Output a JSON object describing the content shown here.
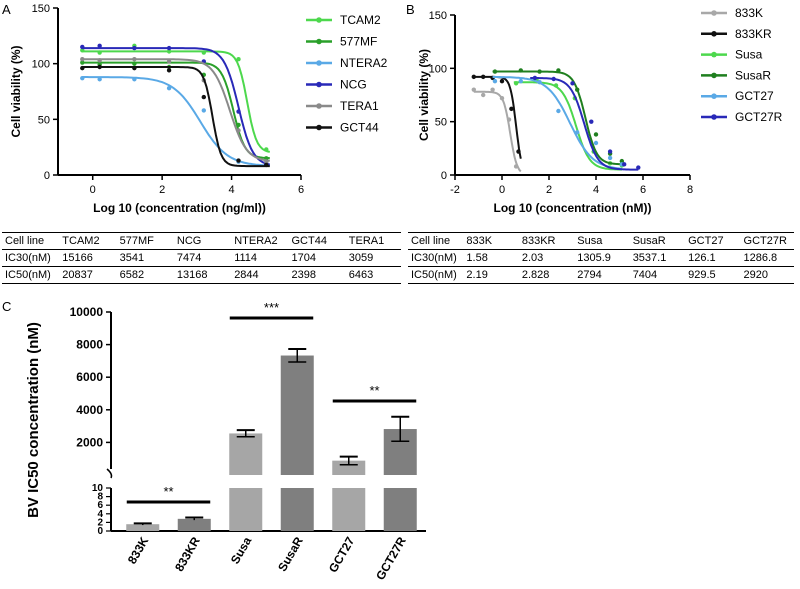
{
  "panels": {
    "a": "A",
    "b": "B",
    "c": "C"
  },
  "chart_data": [
    {
      "type": "line",
      "panel": "A",
      "title": "",
      "xlabel": "Log 10 (concentration (ng/ml))",
      "ylabel": "Cell viability (%)",
      "xlim": [
        -1,
        6
      ],
      "ylim": [
        0,
        150
      ],
      "xticks": [
        "0",
        "2",
        "4",
        "6"
      ],
      "yticks": [
        "0",
        "50",
        "100",
        "150"
      ],
      "series": [
        {
          "name": "TCAM2",
          "color": "#4dd84d",
          "top": 111,
          "bottom": 20,
          "logec50": 4.45,
          "hill": 3.2,
          "points": [
            [
              -0.3,
              112
            ],
            [
              0.2,
              110
            ],
            [
              1.2,
              116
            ],
            [
              2.2,
              111
            ],
            [
              3.2,
              110
            ],
            [
              4.2,
              104
            ],
            [
              5.0,
              23
            ]
          ]
        },
        {
          "name": "577MF",
          "color": "#2aa02a",
          "top": 101,
          "bottom": 15,
          "logec50": 4.05,
          "hill": 2.6,
          "points": [
            [
              -0.3,
              101
            ],
            [
              0.2,
              99
            ],
            [
              1.2,
              100
            ],
            [
              2.2,
              97
            ],
            [
              3.2,
              90
            ],
            [
              4.2,
              45
            ],
            [
              5.0,
              15
            ]
          ]
        },
        {
          "name": "NTERA2",
          "color": "#5aa9e6",
          "top": 88,
          "bottom": 8,
          "logec50": 3.1,
          "hill": 1.1,
          "points": [
            [
              -0.3,
              87
            ],
            [
              0.2,
              86
            ],
            [
              1.2,
              86
            ],
            [
              2.2,
              78
            ],
            [
              3.2,
              58
            ],
            [
              4.2,
              12
            ],
            [
              5.0,
              10
            ]
          ]
        },
        {
          "name": "NCG",
          "color": "#2929b8",
          "top": 114,
          "bottom": 8,
          "logec50": 4.2,
          "hill": 2.1,
          "points": [
            [
              -0.3,
              115
            ],
            [
              0.2,
              116
            ],
            [
              1.2,
              114
            ],
            [
              2.2,
              114
            ],
            [
              3.2,
              102
            ],
            [
              4.2,
              57
            ],
            [
              5.0,
              10
            ]
          ]
        },
        {
          "name": "TERA1",
          "color": "#8a8a8a",
          "top": 104,
          "bottom": 12,
          "logec50": 3.95,
          "hill": 1.8,
          "points": [
            [
              -0.3,
              104
            ],
            [
              0.2,
              103
            ],
            [
              1.2,
              104
            ],
            [
              2.2,
              102
            ],
            [
              3.2,
              85
            ],
            [
              4.2,
              40
            ],
            [
              5.0,
              12
            ]
          ]
        },
        {
          "name": "GCT44",
          "color": "#111111",
          "top": 97,
          "bottom": 8,
          "logec50": 3.45,
          "hill": 3.5,
          "points": [
            [
              -0.3,
              96
            ],
            [
              0.2,
              97
            ],
            [
              1.2,
              96
            ],
            [
              2.2,
              94
            ],
            [
              3.2,
              70
            ],
            [
              4.2,
              13
            ],
            [
              5.0,
              9
            ]
          ]
        }
      ]
    },
    {
      "type": "line",
      "panel": "B",
      "title": "",
      "xlabel": "Log 10 (concentration (nM))",
      "ylabel": "Cell viability (%)",
      "xlim": [
        -2,
        8
      ],
      "ylim": [
        0,
        150
      ],
      "xticks": [
        "-2",
        "0",
        "2",
        "4",
        "6",
        "8"
      ],
      "yticks": [
        "0",
        "50",
        "100",
        "150"
      ],
      "series": [
        {
          "name": "833K",
          "color": "#a8a8a8",
          "top": 78,
          "bottom": 0,
          "logec50": 0.35,
          "hill": 3.0,
          "xmin": -1.2,
          "xmax": 0.8,
          "points": [
            [
              -1.2,
              80
            ],
            [
              -0.8,
              75
            ],
            [
              -0.4,
              80
            ],
            [
              0.0,
              72
            ],
            [
              0.3,
              52
            ],
            [
              0.6,
              8
            ]
          ]
        },
        {
          "name": "833KR",
          "color": "#111111",
          "top": 92,
          "bottom": 0,
          "logec50": 0.6,
          "hill": 3.5,
          "xmin": -1.2,
          "xmax": 0.8,
          "points": [
            [
              -1.2,
              92
            ],
            [
              -0.8,
              92
            ],
            [
              -0.4,
              91
            ],
            [
              0.0,
              88
            ],
            [
              0.4,
              62
            ],
            [
              0.7,
              22
            ]
          ]
        },
        {
          "name": "Susa",
          "color": "#4dd84d",
          "top": 87,
          "bottom": 5,
          "logec50": 3.15,
          "hill": 1.5,
          "xmin": 0.5,
          "xmax": 5.1,
          "points": [
            [
              0.6,
              86
            ],
            [
              1.5,
              88
            ],
            [
              2.3,
              84
            ],
            [
              3.1,
              72
            ],
            [
              3.9,
              22
            ],
            [
              4.6,
              11
            ],
            [
              5.1,
              9
            ]
          ]
        },
        {
          "name": "SusaR",
          "color": "#1f7f1f",
          "top": 97,
          "bottom": 10,
          "logec50": 3.55,
          "hill": 1.8,
          "xmin": -0.4,
          "xmax": 5.1,
          "points": [
            [
              -0.3,
              97
            ],
            [
              0.8,
              98
            ],
            [
              1.6,
              97
            ],
            [
              2.4,
              98
            ],
            [
              3.2,
              80
            ],
            [
              4.0,
              38
            ],
            [
              4.6,
              20
            ],
            [
              5.1,
              13
            ]
          ]
        },
        {
          "name": "GCT27",
          "color": "#5aa9e6",
          "top": 92,
          "bottom": 5,
          "logec50": 2.9,
          "hill": 0.9,
          "xmin": -0.4,
          "xmax": 5.1,
          "points": [
            [
              -0.3,
              88
            ],
            [
              0.8,
              88
            ],
            [
              1.6,
              87
            ],
            [
              2.4,
              60
            ],
            [
              3.2,
              40
            ],
            [
              4.0,
              30
            ],
            [
              4.6,
              16
            ],
            [
              5.1,
              10
            ]
          ]
        },
        {
          "name": "GCT27R",
          "color": "#2929b8",
          "top": 91,
          "bottom": 5,
          "logec50": 3.5,
          "hill": 1.5,
          "xmin": 1.2,
          "xmax": 5.8,
          "points": [
            [
              1.4,
              91
            ],
            [
              2.2,
              90
            ],
            [
              3.0,
              86
            ],
            [
              3.8,
              50
            ],
            [
              4.6,
              22
            ],
            [
              5.2,
              10
            ],
            [
              5.8,
              7
            ]
          ]
        }
      ]
    },
    {
      "type": "bar",
      "panel": "C",
      "title": "",
      "xlabel": "",
      "ylabel": "BV IC50 concentration (nM)",
      "categories": [
        "833K",
        "833KR",
        "Susa",
        "SusaR",
        "GCT27",
        "GCT27R"
      ],
      "values": [
        1.58,
        2.83,
        2550,
        7330,
        880,
        2820
      ],
      "errors": [
        0.2,
        0.3,
        200,
        400,
        250,
        750
      ],
      "colors": [
        "#a6a6a6",
        "#7f7f7f",
        "#a6a6a6",
        "#7f7f7f",
        "#a6a6a6",
        "#7f7f7f"
      ],
      "ylim_upper": [
        0,
        10000
      ],
      "ylim_lower": [
        0,
        10
      ],
      "yticks_upper": [
        "2000",
        "4000",
        "6000",
        "8000",
        "10000"
      ],
      "yticks_lower": [
        "0",
        "2",
        "4",
        "6",
        "8",
        "10"
      ],
      "significance": [
        {
          "label": "**",
          "from": 0,
          "to": 1
        },
        {
          "label": "***",
          "from": 2,
          "to": 3
        },
        {
          "label": "**",
          "from": 4,
          "to": 5
        }
      ]
    }
  ],
  "tables": {
    "a": {
      "header": [
        "Cell line",
        "TCAM2",
        "577MF",
        "NCG",
        "NTERA2",
        "GCT44",
        "TERA1"
      ],
      "rows": [
        [
          "IC30(nM)",
          "15166",
          "3541",
          "7474",
          "1114",
          "1704",
          "3059"
        ],
        [
          "IC50(nM)",
          "20837",
          "6582",
          "13168",
          "2844",
          "2398",
          "6463"
        ]
      ]
    },
    "b": {
      "header": [
        "Cell line",
        "833K",
        "833KR",
        "Susa",
        "SusaR",
        "GCT27",
        "GCT27R"
      ],
      "rows": [
        [
          "IC30(nM)",
          "1.58",
          "2.03",
          "1305.9",
          "3537.1",
          "126.1",
          "1286.8"
        ],
        [
          "IC50(nM)",
          "2.19",
          "2.828",
          "2794",
          "7404",
          "929.5",
          "2920"
        ]
      ]
    }
  }
}
